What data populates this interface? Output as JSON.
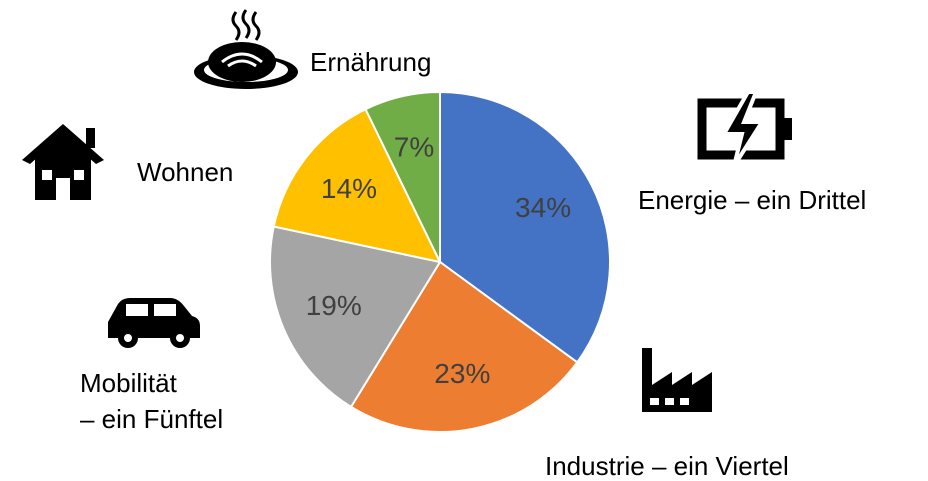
{
  "chart_data": {
    "type": "pie",
    "categories": [
      "Energie – ein Drittel",
      "Industrie – ein Viertel",
      "Mobilität\n– ein Fünftel",
      "Wohnen",
      "Ernährung"
    ],
    "values": [
      34,
      23,
      19,
      14,
      7
    ],
    "value_labels": [
      "34%",
      "23%",
      "19%",
      "14%",
      "7%"
    ],
    "colors": [
      "#4472c4",
      "#ed7d31",
      "#a5a5a5",
      "#ffc000",
      "#70ad47"
    ]
  }
}
